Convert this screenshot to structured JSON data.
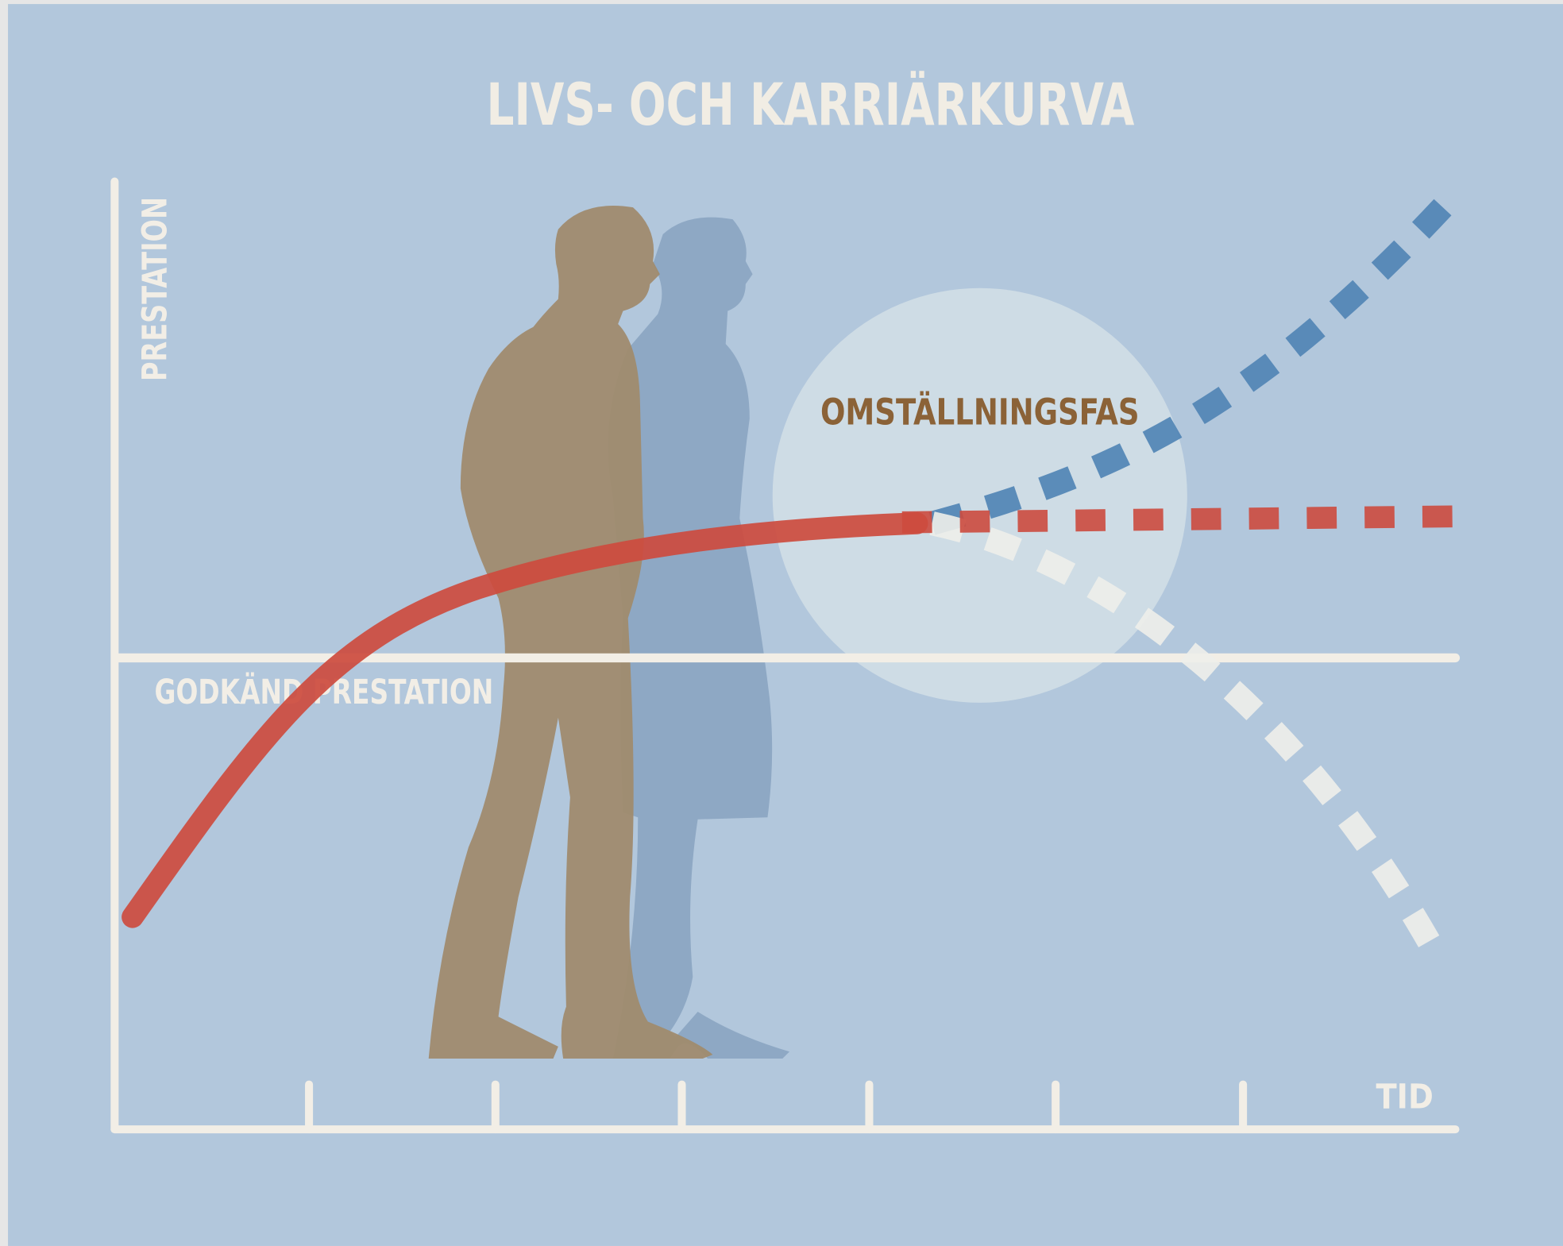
{
  "title": "LIVS- OCH KARRIÄRKURVA",
  "axes": {
    "y_label": "PRESTATION",
    "x_label": "TID"
  },
  "reference_line": {
    "label": "GODKÄND PRESTATION"
  },
  "phase": {
    "label": "OMSTÄLLNINGSFAS"
  }
}
